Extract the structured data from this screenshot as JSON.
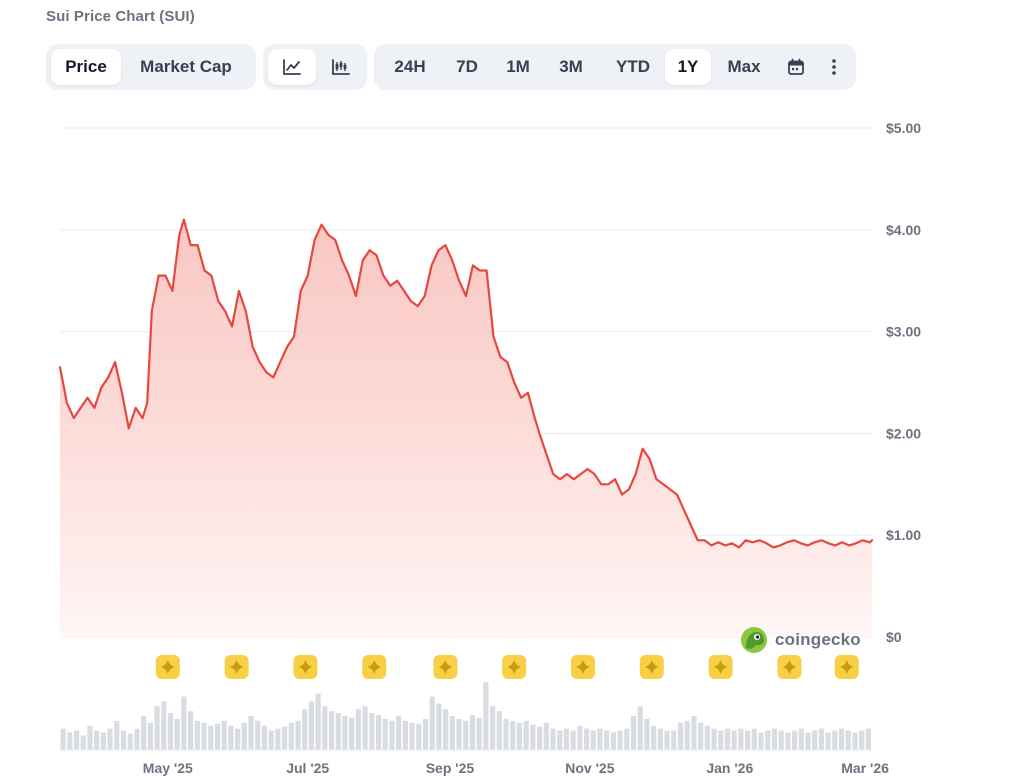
{
  "page": {
    "title": "Sui Price Chart (SUI)"
  },
  "toolbar": {
    "metric_tabs": [
      {
        "label": "Price",
        "active": true
      },
      {
        "label": "Market Cap",
        "active": false
      }
    ],
    "chart_type_icons": [
      {
        "icon": "line-chart-icon",
        "active": true
      },
      {
        "icon": "candlestick-chart-icon",
        "active": false
      }
    ],
    "ranges": [
      {
        "label": "24H",
        "active": false
      },
      {
        "label": "7D",
        "active": false
      },
      {
        "label": "1M",
        "active": false
      },
      {
        "label": "3M",
        "active": false
      },
      {
        "label": "YTD",
        "active": false
      },
      {
        "label": "1Y",
        "active": true
      },
      {
        "label": "Max",
        "active": false
      }
    ],
    "extra_icons": [
      "calendar-icon",
      "more-vertical-icon"
    ]
  },
  "watermark": {
    "text": "coingecko",
    "icon": "gecko-logo-icon"
  },
  "colors": {
    "line": "#e5483f",
    "fill_top": "#f8b4ae",
    "fill_bottom": "#fff5f4",
    "grid": "#ececef",
    "axis_text": "#6b7280",
    "volume": "#d9dde3",
    "event_marker": "#f7d046"
  },
  "chart_data": {
    "type": "area",
    "title": "",
    "xlabel": "",
    "ylabel": "",
    "ylim": [
      0,
      5
    ],
    "y_ticks": [
      "$5.00",
      "$4.00",
      "$3.00",
      "$2.00",
      "$1.00",
      "$0"
    ],
    "y_tick_values": [
      5,
      4,
      3,
      2,
      1,
      0
    ],
    "x_ticks": [
      "May '25",
      "Jul '25",
      "Sep '25",
      "Nov '25",
      "Jan '26",
      "Mar '26"
    ],
    "x_tick_dates": [
      "2025-05-01",
      "2025-07-01",
      "2025-09-01",
      "2025-11-01",
      "2026-01-01",
      "2026-03-01"
    ],
    "xlim": [
      "2025-03-15",
      "2026-03-04"
    ],
    "grid": true,
    "legend": "none",
    "series": [
      {
        "type": "line",
        "x": [
          "2025-03-15",
          "2025-03-18",
          "2025-03-21",
          "2025-03-24",
          "2025-03-27",
          "2025-03-30",
          "2025-04-02",
          "2025-04-05",
          "2025-04-08",
          "2025-04-11",
          "2025-04-14",
          "2025-04-17",
          "2025-04-20",
          "2025-04-22",
          "2025-04-24",
          "2025-04-27",
          "2025-04-30",
          "2025-05-03",
          "2025-05-06",
          "2025-05-08",
          "2025-05-11",
          "2025-05-14",
          "2025-05-17",
          "2025-05-20",
          "2025-05-23",
          "2025-05-26",
          "2025-05-29",
          "2025-06-01",
          "2025-06-04",
          "2025-06-07",
          "2025-06-10",
          "2025-06-13",
          "2025-06-16",
          "2025-06-19",
          "2025-06-22",
          "2025-06-25",
          "2025-06-28",
          "2025-07-01",
          "2025-07-04",
          "2025-07-07",
          "2025-07-10",
          "2025-07-13",
          "2025-07-16",
          "2025-07-19",
          "2025-07-22",
          "2025-07-25",
          "2025-07-28",
          "2025-07-31",
          "2025-08-03",
          "2025-08-06",
          "2025-08-09",
          "2025-08-12",
          "2025-08-15",
          "2025-08-18",
          "2025-08-21",
          "2025-08-24",
          "2025-08-27",
          "2025-08-30",
          "2025-09-02",
          "2025-09-05",
          "2025-09-08",
          "2025-09-11",
          "2025-09-14",
          "2025-09-17",
          "2025-09-20",
          "2025-09-23",
          "2025-09-26",
          "2025-09-29",
          "2025-10-02",
          "2025-10-05",
          "2025-10-08",
          "2025-10-10",
          "2025-10-13",
          "2025-10-16",
          "2025-10-19",
          "2025-10-22",
          "2025-10-25",
          "2025-10-28",
          "2025-10-31",
          "2025-11-03",
          "2025-11-06",
          "2025-11-09",
          "2025-11-12",
          "2025-11-15",
          "2025-11-18",
          "2025-11-21",
          "2025-11-24",
          "2025-11-27",
          "2025-11-30",
          "2025-12-03",
          "2025-12-06",
          "2025-12-09",
          "2025-12-12",
          "2025-12-15",
          "2025-12-18",
          "2025-12-21",
          "2025-12-24",
          "2025-12-27",
          "2025-12-30",
          "2026-01-02",
          "2026-01-05",
          "2026-01-08",
          "2026-01-11",
          "2026-01-14",
          "2026-01-17",
          "2026-01-20",
          "2026-01-23",
          "2026-01-26",
          "2026-01-29",
          "2026-02-01",
          "2026-02-04",
          "2026-02-07",
          "2026-02-10",
          "2026-02-13",
          "2026-02-16",
          "2026-02-19",
          "2026-02-22",
          "2026-02-25",
          "2026-02-28",
          "2026-03-03",
          "2026-03-04"
        ],
        "y": [
          2.65,
          2.3,
          2.15,
          2.25,
          2.35,
          2.25,
          2.45,
          2.55,
          2.7,
          2.4,
          2.05,
          2.25,
          2.15,
          2.3,
          3.2,
          3.55,
          3.55,
          3.4,
          3.95,
          4.1,
          3.85,
          3.85,
          3.6,
          3.55,
          3.3,
          3.2,
          3.05,
          3.4,
          3.2,
          2.85,
          2.7,
          2.6,
          2.55,
          2.7,
          2.85,
          2.95,
          3.4,
          3.55,
          3.9,
          4.05,
          3.95,
          3.9,
          3.7,
          3.55,
          3.35,
          3.7,
          3.8,
          3.75,
          3.55,
          3.45,
          3.5,
          3.4,
          3.3,
          3.25,
          3.35,
          3.65,
          3.8,
          3.85,
          3.7,
          3.5,
          3.35,
          3.65,
          3.6,
          3.6,
          2.95,
          2.75,
          2.7,
          2.5,
          2.35,
          2.4,
          2.15,
          2.0,
          1.8,
          1.6,
          1.55,
          1.6,
          1.55,
          1.6,
          1.65,
          1.6,
          1.5,
          1.5,
          1.55,
          1.4,
          1.45,
          1.6,
          1.85,
          1.75,
          1.55,
          1.5,
          1.45,
          1.4,
          1.25,
          1.1,
          0.95,
          0.95,
          0.9,
          0.93,
          0.9,
          0.92,
          0.88,
          0.95,
          0.93,
          0.95,
          0.92,
          0.88,
          0.9,
          0.93,
          0.95,
          0.92,
          0.9,
          0.93,
          0.95,
          0.92,
          0.9,
          0.93,
          0.9,
          0.92,
          0.95,
          0.93,
          0.95
        ]
      },
      {
        "type": "bar",
        "name": "",
        "values": [
          0.22,
          0.18,
          0.2,
          0.15,
          0.25,
          0.2,
          0.18,
          0.22,
          0.3,
          0.2,
          0.17,
          0.22,
          0.35,
          0.28,
          0.45,
          0.5,
          0.38,
          0.32,
          0.55,
          0.4,
          0.3,
          0.28,
          0.25,
          0.27,
          0.3,
          0.25,
          0.22,
          0.28,
          0.35,
          0.3,
          0.25,
          0.2,
          0.22,
          0.24,
          0.28,
          0.3,
          0.42,
          0.5,
          0.58,
          0.45,
          0.4,
          0.38,
          0.35,
          0.33,
          0.42,
          0.45,
          0.38,
          0.36,
          0.32,
          0.3,
          0.35,
          0.3,
          0.28,
          0.27,
          0.32,
          0.55,
          0.48,
          0.42,
          0.35,
          0.32,
          0.3,
          0.36,
          0.33,
          0.7,
          0.45,
          0.4,
          0.32,
          0.3,
          0.28,
          0.3,
          0.26,
          0.24,
          0.28,
          0.22,
          0.2,
          0.22,
          0.2,
          0.25,
          0.22,
          0.2,
          0.22,
          0.2,
          0.18,
          0.2,
          0.22,
          0.35,
          0.45,
          0.32,
          0.25,
          0.22,
          0.2,
          0.2,
          0.28,
          0.3,
          0.35,
          0.28,
          0.25,
          0.22,
          0.2,
          0.22,
          0.2,
          0.22,
          0.2,
          0.22,
          0.18,
          0.2,
          0.22,
          0.2,
          0.18,
          0.2,
          0.22,
          0.18,
          0.2,
          0.22,
          0.18,
          0.2,
          0.22,
          0.2,
          0.18,
          0.2,
          0.22
        ]
      }
    ],
    "events": [
      "2025-05-01",
      "2025-05-31",
      "2025-06-30",
      "2025-07-30",
      "2025-08-30",
      "2025-09-29",
      "2025-10-29",
      "2025-11-28",
      "2025-12-28",
      "2026-01-27",
      "2026-02-21"
    ]
  }
}
